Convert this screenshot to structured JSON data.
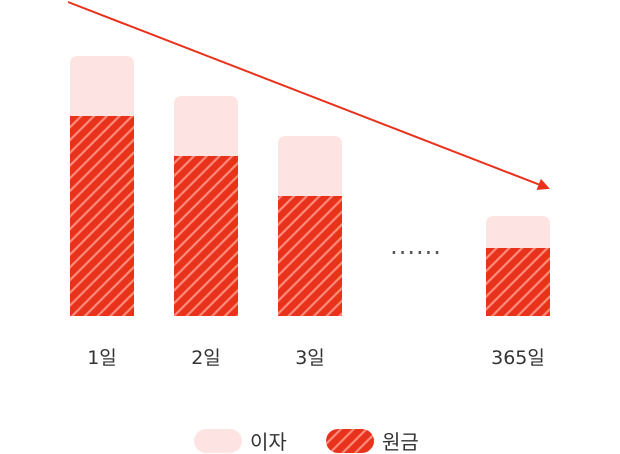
{
  "chart_data": {
    "type": "bar",
    "stacked": true,
    "categories": [
      "1일",
      "2일",
      "3일",
      "365일"
    ],
    "series": [
      {
        "name": "원금",
        "values": [
          100,
          80,
          60,
          34
        ],
        "color": "#e8321c",
        "pattern": "diagonal-stripes"
      },
      {
        "name": "이자",
        "values": [
          30,
          30,
          30,
          16
        ],
        "color": "#fde4e2",
        "pattern": "solid"
      }
    ],
    "gap_marker": "......",
    "trend_arrow": {
      "direction": "down",
      "color": "#e8321c"
    },
    "legend": {
      "position": "bottom-center",
      "items": [
        "이자",
        "원금"
      ]
    },
    "grid": false,
    "axes_visible": false
  }
}
